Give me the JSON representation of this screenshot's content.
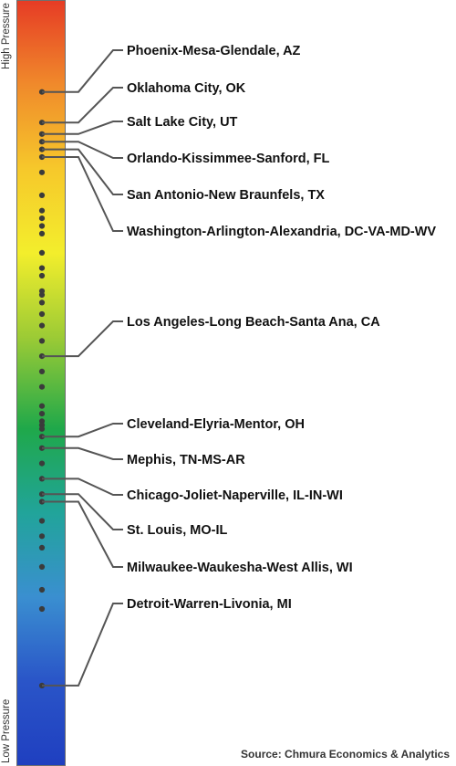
{
  "chart_data": {
    "type": "scatter",
    "axis": {
      "high_label": "High Pressure",
      "low_label": "Low Pressure",
      "ylim": [
        0,
        100
      ]
    },
    "gradient_colors": [
      "#e63c25",
      "#f08a2b",
      "#f6c82b",
      "#f3ee2c",
      "#9ccb35",
      "#1fa84a",
      "#21a49a",
      "#3a8fd0",
      "#2a55c8",
      "#1f3fc0"
    ],
    "dots": [
      88,
      84,
      82.5,
      81.5,
      80.5,
      79.5,
      77.5,
      74.5,
      72.5,
      71.5,
      70.5,
      69.5,
      67,
      65,
      64,
      62,
      61.5,
      60.5,
      59,
      57.5,
      55.5,
      53.5,
      51.5,
      49.5,
      47,
      46,
      45,
      44.5,
      44,
      43,
      41.5,
      39.5,
      37.5,
      35.5,
      34.5,
      32,
      30,
      28.5,
      26,
      23,
      20.5,
      10.5
    ],
    "annotations": [
      {
        "label": "Phoenix-Mesa-Glendale, AZ",
        "value": 88
      },
      {
        "label": "Oklahoma City, OK",
        "value": 84
      },
      {
        "label": "Salt Lake City, UT",
        "value": 82.5
      },
      {
        "label": "Orlando-Kissimmee-Sanford, FL",
        "value": 81.5
      },
      {
        "label": "San Antonio-New Braunfels, TX",
        "value": 80.5
      },
      {
        "label": "Washington-Arlington-Alexandria, DC-VA-MD-WV",
        "value": 79.5
      },
      {
        "label": "Los Angeles-Long Beach-Santa Ana, CA",
        "value": 53.5
      },
      {
        "label": "Cleveland-Elyria-Mentor, OH",
        "value": 43
      },
      {
        "label": "Mephis, TN-MS-AR",
        "value": 41.5
      },
      {
        "label": "Chicago-Joliet-Naperville, IL-IN-WI",
        "value": 37.5
      },
      {
        "label": "St. Louis, MO-IL",
        "value": 35.5
      },
      {
        "label": "Milwaukee-Waukesha-West Allis, WI",
        "value": 34.5
      },
      {
        "label": "Detroit-Warren-Livonia, MI",
        "value": 10.5
      }
    ],
    "source": "Source: Chmura Economics & Analytics"
  }
}
